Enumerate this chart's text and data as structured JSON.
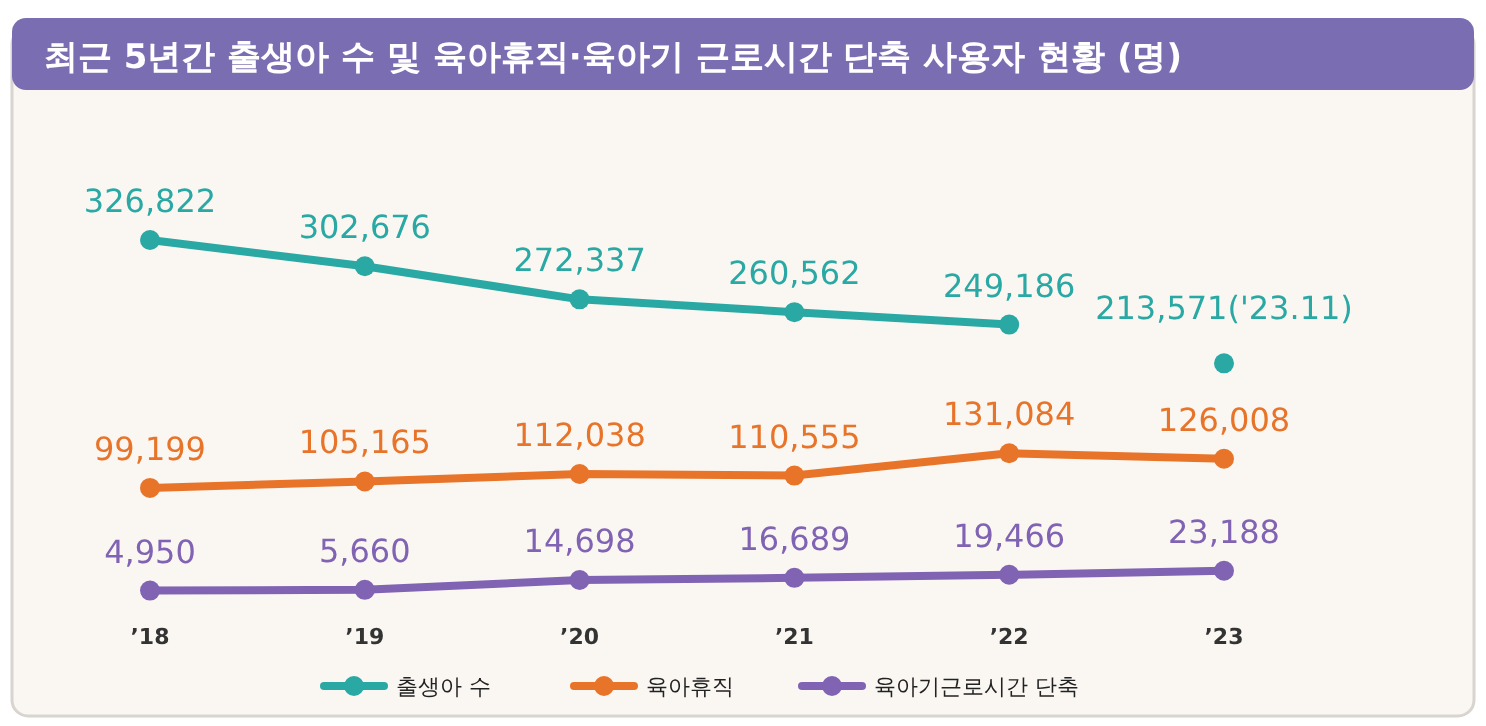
{
  "chart_data": {
    "type": "line",
    "title": "최근 5년간 출생아 수 및 육아휴직·육아기 근로시간 단축 사용자 현황 (명)",
    "categories": [
      "’18",
      "’19",
      "’20",
      "’21",
      "’22",
      "’23"
    ],
    "series": [
      {
        "name": "출생아 수",
        "color": "#2aa8a4",
        "values": [
          326822,
          302676,
          272337,
          260562,
          249186,
          null
        ],
        "value_labels": [
          "326,822",
          "302,676",
          "272,337",
          "260,562",
          "249,186",
          null
        ]
      },
      {
        "type": "scatter",
        "color": "#2aa8a4",
        "values": [
          null,
          null,
          null,
          null,
          null,
          213571
        ],
        "value_labels": [
          null,
          null,
          null,
          null,
          null,
          "213,571('23.11)"
        ]
      },
      {
        "name": "육아휴직",
        "color": "#e8742a",
        "values": [
          99199,
          105165,
          112038,
          110555,
          131084,
          126008
        ],
        "value_labels": [
          "99,199",
          "105,165",
          "112,038",
          "110,555",
          "131,084",
          "126,008"
        ]
      },
      {
        "name": "육아기근로시간 단축",
        "color": "#8063b3",
        "values": [
          4950,
          5660,
          14698,
          16689,
          19466,
          23188
        ],
        "value_labels": [
          "4,950",
          "5,660",
          "14,698",
          "16,689",
          "19,466",
          "23,188"
        ]
      }
    ],
    "marker": "circle",
    "legend": "bottom"
  }
}
